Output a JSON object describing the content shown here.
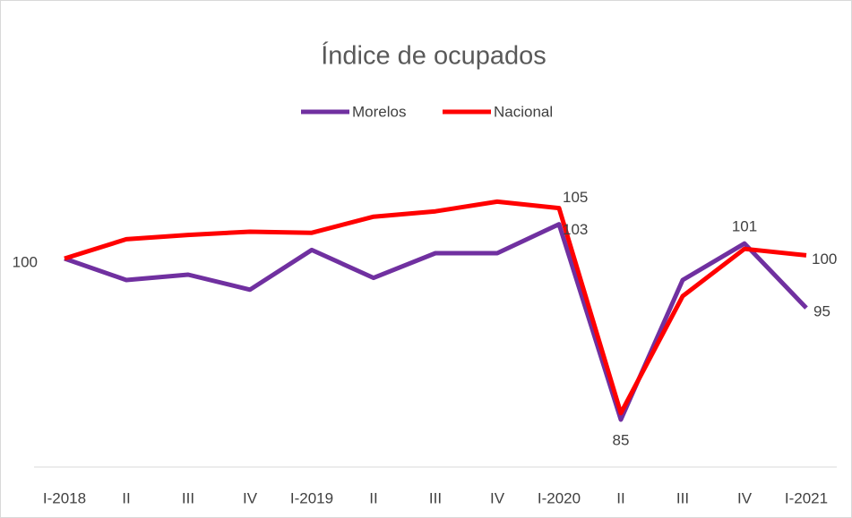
{
  "chart_data": {
    "type": "line",
    "title": "Índice de ocupados",
    "categories": [
      "I-2018",
      "II",
      "III",
      "IV",
      "I-2019",
      "II",
      "III",
      "IV",
      "I-2020",
      "II",
      "III",
      "IV",
      "I-2021"
    ],
    "series": [
      {
        "name": "Morelos",
        "color": "#7030a0",
        "values": [
          100,
          98.0,
          98.5,
          97.1,
          100.8,
          98.2,
          100.5,
          100.5,
          103.2,
          85,
          98.0,
          101.4,
          95.4
        ],
        "value_labels": [
          "100",
          null,
          null,
          null,
          null,
          null,
          null,
          null,
          "103",
          "85",
          null,
          "101",
          "95"
        ]
      },
      {
        "name": "Nacional",
        "color": "#ff0000",
        "values": [
          100,
          101.8,
          102.2,
          102.5,
          102.4,
          103.9,
          104.4,
          105.3,
          104.7,
          85.6,
          96.5,
          100.9,
          100.3
        ],
        "value_labels": [
          null,
          null,
          null,
          null,
          null,
          null,
          null,
          null,
          "105",
          null,
          null,
          null,
          "100"
        ]
      }
    ],
    "ylim": [
      81,
      107
    ],
    "legend": "top"
  }
}
